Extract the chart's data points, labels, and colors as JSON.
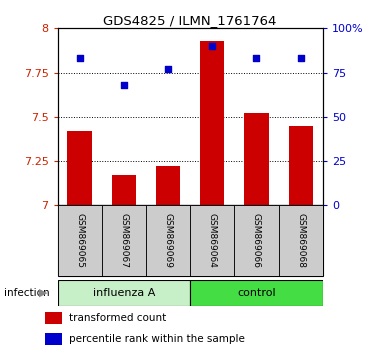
{
  "title": "GDS4825 / ILMN_1761764",
  "samples": [
    "GSM869065",
    "GSM869067",
    "GSM869069",
    "GSM869064",
    "GSM869066",
    "GSM869068"
  ],
  "red_values": [
    7.42,
    7.17,
    7.22,
    7.93,
    7.52,
    7.45
  ],
  "blue_values": [
    83,
    68,
    77,
    90,
    83,
    83
  ],
  "bar_color": "#CC0000",
  "dot_color": "#0000CC",
  "ylim_left": [
    7.0,
    8.0
  ],
  "ylim_right": [
    0,
    100
  ],
  "yticks_left": [
    7.0,
    7.25,
    7.5,
    7.75,
    8.0
  ],
  "yticks_left_labels": [
    "7",
    "7.25",
    "7.5",
    "7.75",
    "8"
  ],
  "yticks_right": [
    0,
    25,
    50,
    75,
    100
  ],
  "yticks_right_labels": [
    "0",
    "25",
    "50",
    "75",
    "100%"
  ],
  "group_split": 3,
  "influenza_color": "#c8f0c8",
  "control_color": "#44dd44",
  "label_color_left": "#CC2200",
  "label_color_right": "#0000CC",
  "legend_items": [
    "transformed count",
    "percentile rank within the sample"
  ],
  "infection_label": "infection"
}
